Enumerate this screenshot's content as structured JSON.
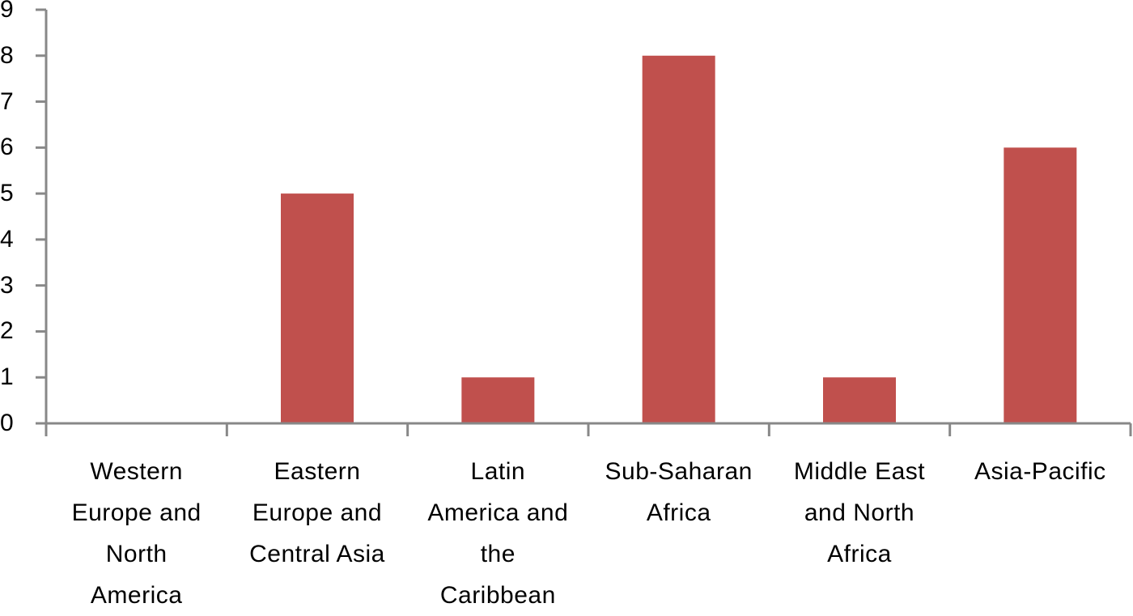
{
  "chart_data": {
    "type": "bar",
    "title": "",
    "xlabel": "",
    "ylabel": "",
    "ylim": [
      0,
      9
    ],
    "yticks": [
      0,
      1,
      2,
      3,
      4,
      5,
      6,
      7,
      8,
      9
    ],
    "grid": false,
    "legend": null,
    "categories": [
      "Western Europe and North America",
      "Eastern Europe and Central Asia",
      "Latin America and the Caribbean",
      "Sub-Saharan Africa",
      "Middle East and North Africa",
      "Asia-Pacific"
    ],
    "category_lines": [
      [
        "Western",
        "Europe and",
        "North",
        "America"
      ],
      [
        "Eastern",
        "Europe and",
        "Central Asia"
      ],
      [
        "Latin",
        "America and",
        "the",
        "Caribbean"
      ],
      [
        "Sub-Saharan",
        "Africa"
      ],
      [
        "Middle East",
        "and North",
        "Africa"
      ],
      [
        "Asia-Pacific"
      ]
    ],
    "values": [
      0,
      5,
      1,
      8,
      1,
      6
    ],
    "bar_color": "#C0504D",
    "axis_color": "#888888"
  }
}
